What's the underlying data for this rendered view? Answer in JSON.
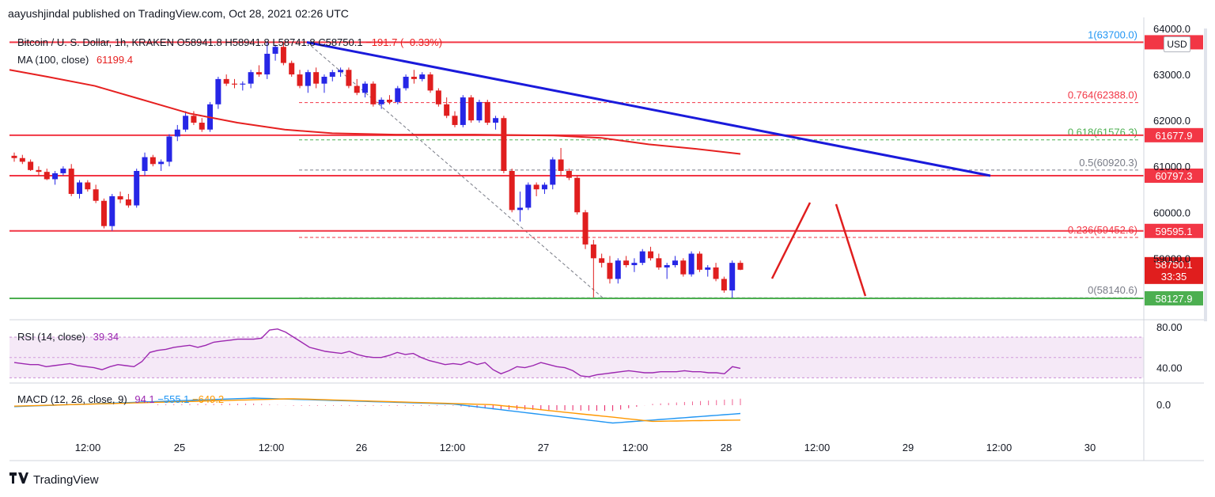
{
  "header": "aayushjindal published on TradingView.com, Oct 28, 2021 02:26 UTC",
  "footer": {
    "brand": "TradingView",
    "logo": "17"
  },
  "ohlc": {
    "symbol": "Bitcoin / U. S. Dollar, 1h, KRAKEN",
    "o": "O58941.8",
    "h": "H58941.8",
    "l": "L58741.8",
    "c": "C58750.1",
    "chg": "−191.7 (−0.33%)"
  },
  "ma": {
    "label": "MA (100, close)",
    "value": "61199.4"
  },
  "rsi": {
    "label": "RSI (14, close)",
    "value": "39.34"
  },
  "macd": {
    "label": "MACD (12, 26, close, 9)",
    "macd": "94.1",
    "signal": "−555.1",
    "hist": "−649.2"
  },
  "currency": "USD",
  "chart_data": {
    "type": "candlestick",
    "title": "Bitcoin / U. S. Dollar, 1h, KRAKEN",
    "ylim": [
      57800,
      64000
    ],
    "y_ticks": [
      "64000.0",
      "63000.0",
      "62000.0",
      "61000.0",
      "60000.0",
      "59000.0"
    ],
    "x_ticks": [
      "12:00",
      "25",
      "12:00",
      "26",
      "12:00",
      "27",
      "12:00",
      "28",
      "12:00",
      "29",
      "12:00",
      "30"
    ],
    "candles": [
      [
        61230,
        61300,
        61100,
        61180
      ],
      [
        61180,
        61250,
        61050,
        61100
      ],
      [
        61100,
        61150,
        60900,
        60920
      ],
      [
        60920,
        61000,
        60800,
        60880
      ],
      [
        60880,
        60950,
        60700,
        60720
      ],
      [
        60720,
        60900,
        60600,
        60850
      ],
      [
        60850,
        61000,
        60800,
        60950
      ],
      [
        60950,
        61050,
        60350,
        60400
      ],
      [
        60400,
        60700,
        60300,
        60650
      ],
      [
        60650,
        60700,
        60450,
        60500
      ],
      [
        60500,
        60600,
        60200,
        60250
      ],
      [
        60250,
        60300,
        59650,
        59700
      ],
      [
        59700,
        60400,
        59600,
        60350
      ],
      [
        60350,
        60450,
        60200,
        60280
      ],
      [
        60280,
        60400,
        60100,
        60150
      ],
      [
        60150,
        60950,
        60100,
        60900
      ],
      [
        60900,
        61300,
        60800,
        61200
      ],
      [
        61200,
        61250,
        61000,
        61050
      ],
      [
        61050,
        61150,
        60900,
        61100
      ],
      [
        61100,
        61700,
        61000,
        61650
      ],
      [
        61650,
        61900,
        61550,
        61800
      ],
      [
        61800,
        62200,
        61750,
        62100
      ],
      [
        62100,
        62200,
        61900,
        61950
      ],
      [
        61950,
        62050,
        61750,
        61800
      ],
      [
        61800,
        62400,
        61750,
        62350
      ],
      [
        62350,
        62950,
        62250,
        62900
      ],
      [
        62900,
        63000,
        62750,
        62800
      ],
      [
        62800,
        62900,
        62700,
        62780
      ],
      [
        62780,
        62850,
        62650,
        62800
      ],
      [
        62800,
        63100,
        62700,
        63050
      ],
      [
        63050,
        63200,
        62950,
        63000
      ],
      [
        63000,
        63700,
        62900,
        63450
      ],
      [
        63450,
        63650,
        63300,
        63600
      ],
      [
        63600,
        63700,
        63200,
        63250
      ],
      [
        63250,
        63300,
        62950,
        63000
      ],
      [
        63000,
        63100,
        62700,
        62750
      ],
      [
        62750,
        63100,
        62600,
        63050
      ],
      [
        63050,
        63150,
        62700,
        62800
      ],
      [
        62800,
        63000,
        62600,
        62950
      ],
      [
        62950,
        63100,
        62850,
        63050
      ],
      [
        63050,
        63150,
        62950,
        63100
      ],
      [
        63100,
        63150,
        62700,
        62750
      ],
      [
        62750,
        62900,
        62550,
        62600
      ],
      [
        62600,
        62850,
        62500,
        62800
      ],
      [
        62800,
        62850,
        62300,
        62350
      ],
      [
        62350,
        62500,
        62250,
        62450
      ],
      [
        62450,
        62550,
        62350,
        62400
      ],
      [
        62400,
        62750,
        62350,
        62700
      ],
      [
        62700,
        63000,
        62650,
        62950
      ],
      [
        62950,
        63100,
        62800,
        62900
      ],
      [
        62900,
        63050,
        62850,
        63000
      ],
      [
        63000,
        63050,
        62600,
        62650
      ],
      [
        62650,
        62700,
        62300,
        62350
      ],
      [
        62350,
        62500,
        62050,
        62100
      ],
      [
        62100,
        62200,
        61850,
        61900
      ],
      [
        61900,
        62550,
        61850,
        62500
      ],
      [
        62500,
        62550,
        61950,
        62000
      ],
      [
        62000,
        62450,
        61950,
        62400
      ],
      [
        62400,
        62450,
        61900,
        61950
      ],
      [
        61950,
        62100,
        61800,
        62050
      ],
      [
        62050,
        62100,
        60850,
        60900
      ],
      [
        60900,
        60950,
        60000,
        60050
      ],
      [
        60050,
        60450,
        59800,
        60100
      ],
      [
        60100,
        60650,
        60050,
        60600
      ],
      [
        60600,
        60650,
        60350,
        60500
      ],
      [
        60500,
        60650,
        60400,
        60600
      ],
      [
        60600,
        61200,
        60500,
        61150
      ],
      [
        61150,
        61400,
        60800,
        60900
      ],
      [
        60900,
        60950,
        60700,
        60750
      ],
      [
        60750,
        60800,
        59950,
        60000
      ],
      [
        60000,
        60050,
        59200,
        59300
      ],
      [
        59300,
        59400,
        58150,
        59000
      ],
      [
        59000,
        59100,
        58800,
        58900
      ],
      [
        58900,
        59050,
        58450,
        58550
      ],
      [
        58550,
        59000,
        58450,
        58950
      ],
      [
        58950,
        59050,
        58800,
        58850
      ],
      [
        58850,
        59000,
        58700,
        58900
      ],
      [
        58900,
        59200,
        58850,
        59150
      ],
      [
        59150,
        59250,
        58950,
        59000
      ],
      [
        59000,
        59100,
        58750,
        58800
      ],
      [
        58800,
        58900,
        58550,
        58850
      ],
      [
        58850,
        59050,
        58800,
        58950
      ],
      [
        58950,
        59000,
        58600,
        58650
      ],
      [
        58650,
        59150,
        58600,
        59100
      ],
      [
        59100,
        59150,
        58700,
        58750
      ],
      [
        58750,
        58850,
        58600,
        58800
      ],
      [
        58800,
        58900,
        58500,
        58550
      ],
      [
        58550,
        58600,
        58250,
        58300
      ],
      [
        58300,
        58950,
        58140,
        58900
      ],
      [
        58900,
        58950,
        58740,
        58750
      ]
    ],
    "ma100": [
      [
        12,
        63100
      ],
      [
        60,
        62950
      ],
      [
        120,
        62750
      ],
      [
        180,
        62450
      ],
      [
        240,
        62150
      ],
      [
        300,
        61950
      ],
      [
        360,
        61800
      ],
      [
        420,
        61720
      ],
      [
        500,
        61690
      ],
      [
        600,
        61690
      ],
      [
        700,
        61670
      ],
      [
        760,
        61620
      ],
      [
        820,
        61480
      ],
      [
        880,
        61380
      ],
      [
        936,
        61270
      ]
    ],
    "horizontal_levels": [
      {
        "price": 63700,
        "color": "#f23645",
        "label": "6...4"
      },
      {
        "price": 61678,
        "color": "#f23645",
        "label": "61677.9"
      },
      {
        "price": 60797,
        "color": "#f23645",
        "label": "60797.3"
      },
      {
        "price": 59595,
        "color": "#f23645",
        "label": "59595.1"
      },
      {
        "price": 58128,
        "color": "#4caf50",
        "label": "58127.9"
      }
    ],
    "fib_levels": [
      {
        "ratio": "1",
        "price": 63700,
        "label": "1(63700.0)",
        "color": "#2196f3"
      },
      {
        "ratio": "0.764",
        "price": 62388,
        "label": "0.764(62388.0)",
        "color": "#f23645"
      },
      {
        "ratio": "0.618",
        "price": 61576.3,
        "label": "0.618(61576.3)",
        "color": "#4caf50"
      },
      {
        "ratio": "0.5",
        "price": 60920.3,
        "label": "0.5(60920.3)",
        "color": "#787b86"
      },
      {
        "ratio": "0.236",
        "price": 59452.6,
        "label": "0.236(59452.6)",
        "color": "#f23645"
      },
      {
        "ratio": "0",
        "price": 58140.6,
        "label": "0(58140.6)",
        "color": "#787b86"
      }
    ],
    "last_price": {
      "value": "58750.1",
      "countdown": "33:35"
    },
    "rsi_value": 39.34,
    "rsi_ticks": [
      "80.00",
      "40.00"
    ],
    "macd_ticks": [
      "0.0"
    ],
    "colors": {
      "up": "#2626e6",
      "down": "#e01e1e",
      "ma": "#e62020",
      "trend": "#1a1adb",
      "rsi": "#9c27b0",
      "macd": "#2196f3",
      "signal": "#ff9800"
    }
  }
}
